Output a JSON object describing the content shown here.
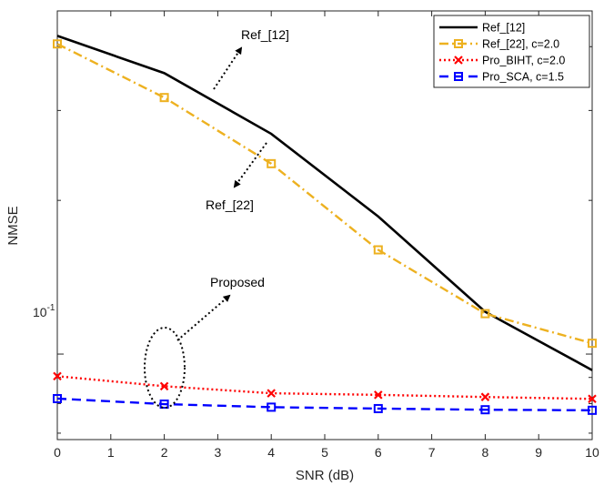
{
  "chart_data": {
    "type": "line",
    "title": "",
    "xlabel": "SNR (dB)",
    "ylabel": "NMSE",
    "yscale": "log",
    "xlim": [
      0,
      10
    ],
    "ylim": [
      0.068,
      0.47
    ],
    "x_ticks": [
      "0",
      "1",
      "2",
      "3",
      "4",
      "5",
      "6",
      "7",
      "8",
      "9",
      "10"
    ],
    "y_tick_label": {
      "base": "10",
      "exp": "-1",
      "value": 0.1
    },
    "legend_position": "top-right",
    "series": [
      {
        "name": "Ref_[12]",
        "color": "#000000",
        "style": "solid",
        "marker": "none",
        "x": [
          0,
          2,
          4,
          6,
          8,
          10
        ],
        "values": [
          0.42,
          0.355,
          0.27,
          0.186,
          0.121,
          0.093
        ]
      },
      {
        "name": "Ref_[22], c=2.0",
        "color": "#EDB120",
        "style": "dashdot",
        "marker": "square",
        "x": [
          0,
          2,
          4,
          6,
          8,
          10
        ],
        "values": [
          0.405,
          0.318,
          0.236,
          0.16,
          0.12,
          0.105
        ]
      },
      {
        "name": "Pro_BIHT, c=2.0",
        "color": "#FF0000",
        "style": "dotted",
        "marker": "x",
        "x": [
          0,
          2,
          4,
          6,
          8,
          10
        ],
        "values": [
          0.0905,
          0.0865,
          0.0838,
          0.0832,
          0.0824,
          0.0817
        ]
      },
      {
        "name": "Pro_SCA, c=1.5",
        "color": "#0000FF",
        "style": "dashed",
        "marker": "square",
        "x": [
          0,
          2,
          4,
          6,
          8,
          10
        ],
        "values": [
          0.0818,
          0.0798,
          0.0787,
          0.0782,
          0.0778,
          0.0776
        ]
      }
    ],
    "annotations": [
      {
        "text": "Ref_[12]",
        "target_series": "Ref_[12]"
      },
      {
        "text": "Ref_[22]",
        "target_series": "Ref_[22], c=2.0"
      },
      {
        "text": "Proposed",
        "target_series": "Pro_BIHT, c=2.0 / Pro_SCA, c=1.5"
      }
    ]
  }
}
